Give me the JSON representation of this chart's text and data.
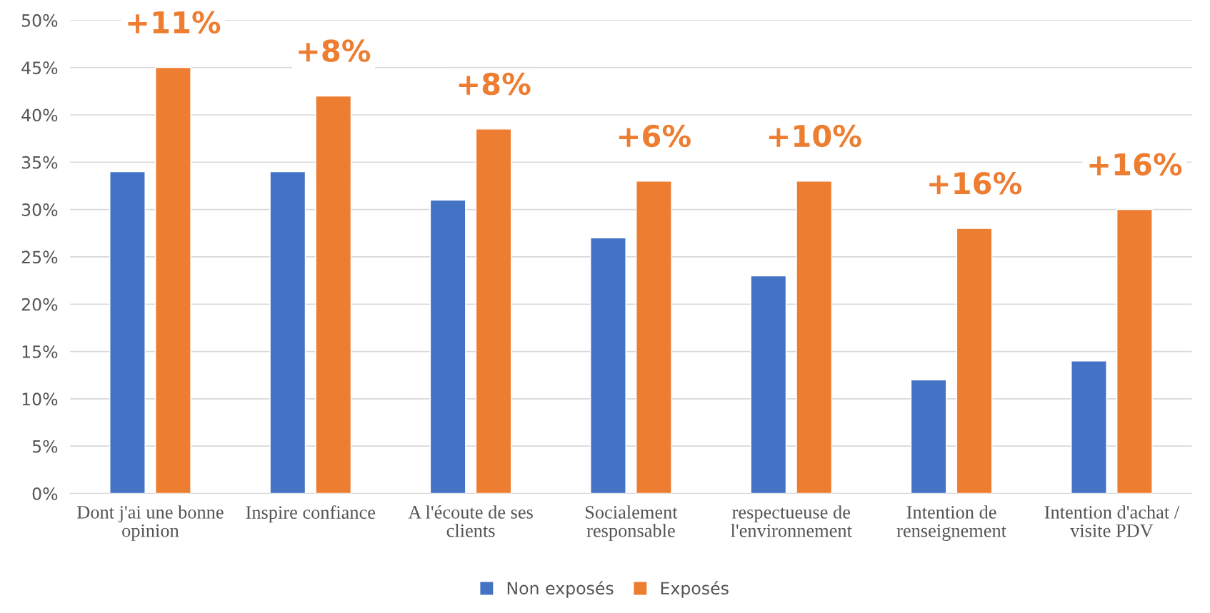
{
  "chart_data": {
    "type": "bar",
    "categories": [
      "Dont j'ai une bonne opinion",
      "Inspire confiance",
      "A l'écoute de ses clients",
      "Socialement responsable",
      "respectueuse de l'environnement",
      "Intention de renseignement",
      "Intention d'achat / visite PDV"
    ],
    "series": [
      {
        "name": "Non exposés",
        "color": "#4472c4",
        "values": [
          34,
          34,
          31,
          27,
          23,
          12,
          14
        ]
      },
      {
        "name": "Exposés",
        "color": "#ed7d31",
        "values": [
          45,
          42,
          38.5,
          33,
          33,
          28,
          30
        ]
      }
    ],
    "ylim": [
      0,
      50
    ],
    "yticks": [
      {
        "value": 0,
        "label": "0%"
      },
      {
        "value": 5,
        "label": "5%"
      },
      {
        "value": 10,
        "label": "10%"
      },
      {
        "value": 15,
        "label": "15%"
      },
      {
        "value": 20,
        "label": "20%"
      },
      {
        "value": 25,
        "label": "25%"
      },
      {
        "value": 30,
        "label": "30%"
      },
      {
        "value": 35,
        "label": "35%"
      },
      {
        "value": 40,
        "label": "40%"
      },
      {
        "value": 45,
        "label": "45%"
      },
      {
        "value": 50,
        "label": "50%"
      }
    ],
    "grid": "y",
    "legend": "bottom",
    "annotations": [
      "+11%",
      "+8%",
      "+8%",
      "+6%",
      "+10%",
      "+16%",
      "+16%"
    ]
  }
}
